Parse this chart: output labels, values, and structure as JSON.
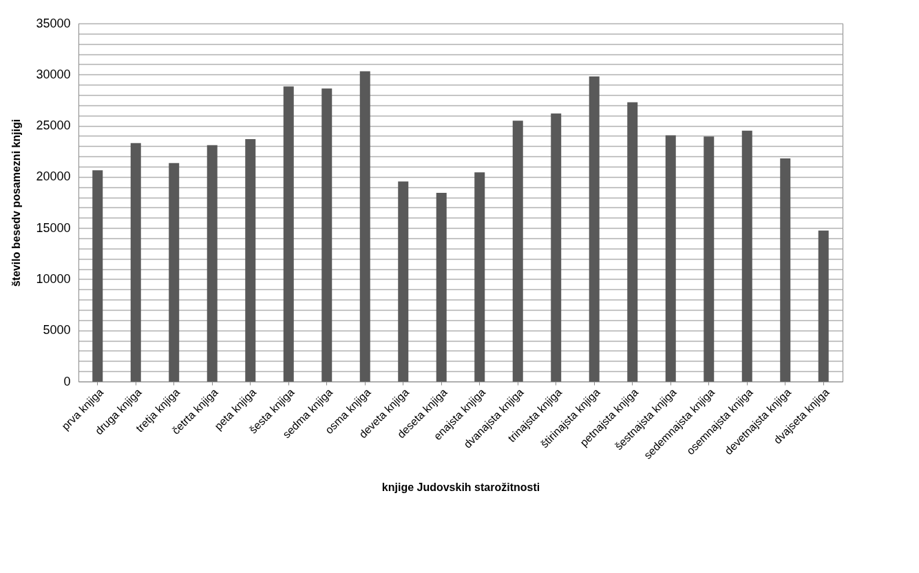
{
  "chart_data": {
    "type": "bar",
    "xlabel": "knjige Judovskih starožitnosti",
    "ylabel": "število besedv posamezni knjigi",
    "categories": [
      "prva knjiga",
      "druga knjiga",
      "tretja knjiga",
      "četrta knjiga",
      "peta knjiga",
      "šesta knjiga",
      "sedma knjiga",
      "osma knjiga",
      "deveta knjiga",
      "deseta knjiga",
      "enajsta knjiga",
      "dvanajsta knjiga",
      "trinajsta knjiga",
      "štirinajsta knjiga",
      "petnajsta knjiga",
      "šestnajsta knjiga",
      "sedemnajsta knjiga",
      "osemnajsta knjiga",
      "devetnajsta knjiga",
      "dvajseta knjiga"
    ],
    "values": [
      20650,
      23300,
      21350,
      23100,
      23690,
      28840,
      28640,
      30320,
      19550,
      18450,
      20450,
      25500,
      26200,
      29810,
      27290,
      24070,
      23940,
      24520,
      21800,
      14760
    ],
    "color": "#595959",
    "ylim": [
      0,
      35000
    ],
    "yticks": [
      0,
      {
        "value": 1000,
        "label": null
      },
      {
        "value": 2000,
        "label": null
      },
      {
        "value": 3000,
        "label": null
      },
      {
        "value": 4000,
        "label": null
      },
      5000,
      {
        "value": 6000,
        "label": null
      },
      {
        "value": 7000,
        "label": null
      },
      {
        "value": 8000,
        "label": null
      },
      {
        "value": 9000,
        "label": null
      },
      10000,
      {
        "value": 11000,
        "label": null
      },
      {
        "value": 12000,
        "label": null
      },
      {
        "value": 13000,
        "label": null
      },
      {
        "value": 14000,
        "label": null
      },
      15000,
      {
        "value": 16000,
        "label": null
      },
      {
        "value": 17000,
        "label": null
      },
      {
        "value": 18000,
        "label": null
      },
      {
        "value": 19000,
        "label": null
      },
      20000,
      {
        "value": 21000,
        "label": null
      },
      {
        "value": 22000,
        "label": null
      },
      {
        "value": 23000,
        "label": null
      },
      {
        "value": 24000,
        "label": null
      },
      25000,
      {
        "value": 26000,
        "label": null
      },
      {
        "value": 27000,
        "label": null
      },
      {
        "value": 28000,
        "label": null
      },
      {
        "value": 29000,
        "label": null
      },
      30000,
      {
        "value": 31000,
        "label": null
      },
      {
        "value": 32000,
        "label": null
      },
      {
        "value": 33000,
        "label": null
      },
      {
        "value": 34000,
        "label": null
      },
      35000
    ],
    "grid": "y"
  }
}
